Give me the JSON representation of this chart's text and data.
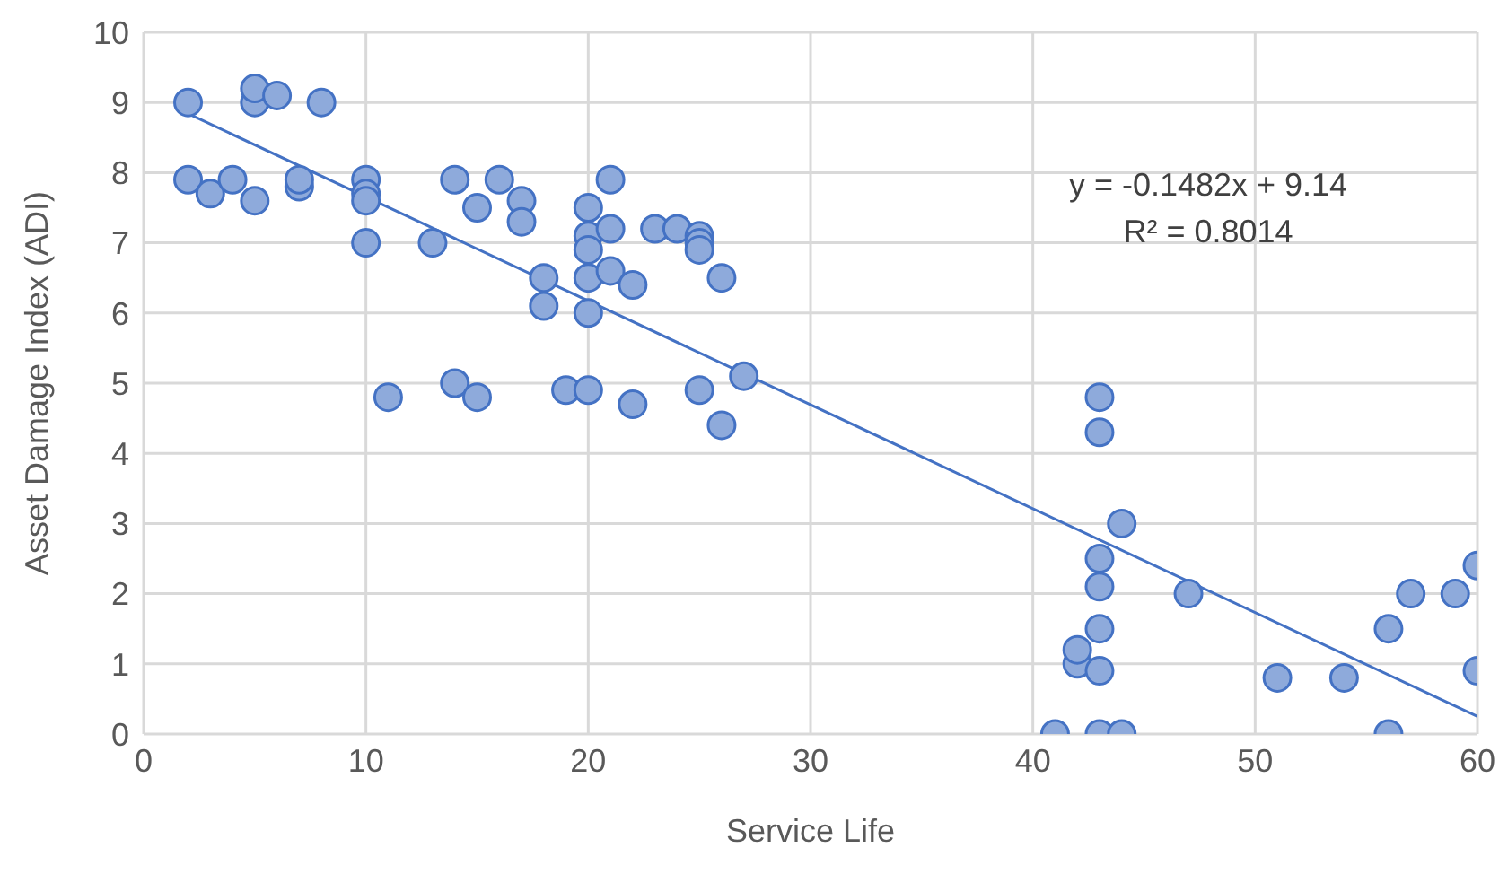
{
  "chart_data": {
    "type": "scatter",
    "xlabel": "Service Life",
    "ylabel": "Asset Damage Index (ADI)",
    "xlim": [
      0,
      60
    ],
    "xticks": [
      0,
      10,
      20,
      30,
      40,
      50,
      60
    ],
    "ylim": [
      0,
      10
    ],
    "yticks": [
      0,
      1,
      2,
      3,
      4,
      5,
      6,
      7,
      8,
      9,
      10
    ],
    "grid": true,
    "marker": "circle",
    "annotations": [
      "y = -0.1482x + 9.14",
      "R² = 0.8014"
    ],
    "series": [
      {
        "color": "#4472c4",
        "x": [
          2,
          2,
          3,
          4,
          5,
          5,
          5,
          6,
          7,
          7,
          8,
          10,
          10,
          10,
          10,
          11,
          13,
          14,
          14,
          15,
          15,
          16,
          17,
          17,
          18,
          18,
          19,
          20,
          20,
          20,
          20,
          20,
          20,
          21,
          21,
          21,
          22,
          22,
          23,
          24,
          25,
          25,
          25,
          25,
          26,
          26,
          27,
          41,
          42,
          42,
          43,
          43,
          43,
          43,
          43,
          43,
          43,
          44,
          44,
          47,
          51,
          54,
          56,
          56,
          57,
          59,
          60,
          60
        ],
        "values": [
          9,
          7.9,
          7.7,
          7.9,
          9,
          9.2,
          7.6,
          9.1,
          7.8,
          7.9,
          9,
          7.9,
          7.7,
          7.6,
          7,
          4.8,
          7,
          7.9,
          5,
          7.5,
          4.8,
          7.9,
          7.6,
          7.3,
          6.5,
          6.1,
          4.9,
          7.5,
          7.1,
          6.9,
          6.5,
          6,
          4.9,
          7.9,
          7.2,
          6.6,
          6.4,
          4.7,
          7.2,
          7.2,
          7.1,
          7,
          6.9,
          4.9,
          6.5,
          4.4,
          5.1,
          0,
          1,
          1.2,
          4.8,
          4.3,
          2.5,
          2.1,
          1.5,
          0.9,
          0,
          3,
          0,
          2,
          0.8,
          0.8,
          1.5,
          0,
          2,
          2,
          2.4,
          0.9
        ]
      },
      {
        "type": "line",
        "marker": "none",
        "color": "#4472c4",
        "x": [
          2,
          60
        ],
        "values": [
          8.84,
          0.25
        ]
      }
    ]
  }
}
